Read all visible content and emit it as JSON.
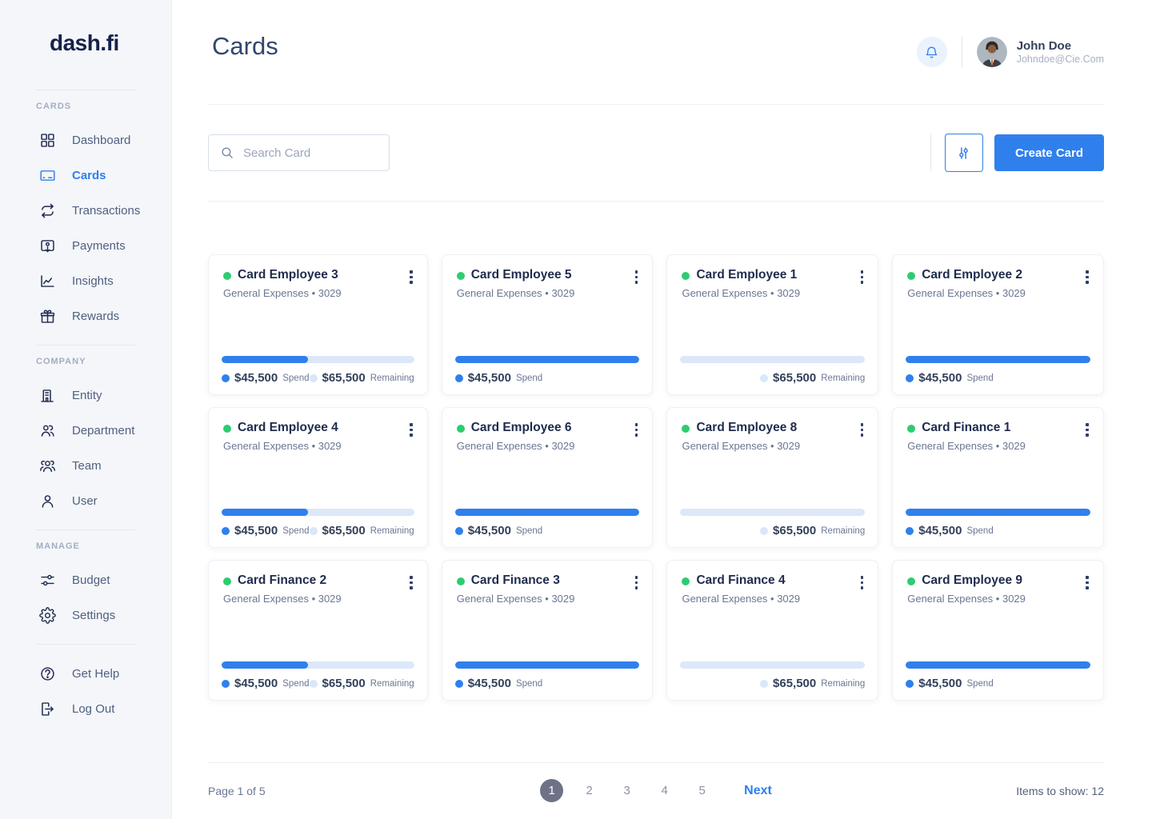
{
  "sidebar": {
    "logo": "dash.fi",
    "sections": [
      {
        "label": "CARDS",
        "items": [
          {
            "icon": "dashboard-icon",
            "label": "Dashboard",
            "active": false
          },
          {
            "icon": "card-icon",
            "label": "Cards",
            "active": true
          },
          {
            "icon": "transactions-icon",
            "label": "Transactions",
            "active": false
          },
          {
            "icon": "payments-icon",
            "label": "Payments",
            "active": false
          },
          {
            "icon": "insights-icon",
            "label": "Insights",
            "active": false
          },
          {
            "icon": "rewards-icon",
            "label": "Rewards",
            "active": false
          }
        ]
      },
      {
        "label": "COMPANY",
        "items": [
          {
            "icon": "entity-icon",
            "label": "Entity",
            "active": false
          },
          {
            "icon": "department-icon",
            "label": "Department",
            "active": false
          },
          {
            "icon": "team-icon",
            "label": "Team",
            "active": false
          },
          {
            "icon": "user-icon",
            "label": "User",
            "active": false
          }
        ]
      },
      {
        "label": "MANAGE",
        "items": [
          {
            "icon": "budget-icon",
            "label": "Budget",
            "active": false
          },
          {
            "icon": "settings-icon",
            "label": "Settings",
            "active": false
          }
        ]
      }
    ],
    "footer_items": [
      {
        "icon": "help-icon",
        "label": "Get Help"
      },
      {
        "icon": "logout-icon",
        "label": "Log Out"
      }
    ]
  },
  "header": {
    "title": "Cards",
    "user": {
      "name": "John Doe",
      "email": "Johndoe@Cie.Com"
    }
  },
  "toolbar": {
    "search_placeholder": "Search Card",
    "create_button": "Create Card"
  },
  "card_labels": {
    "spend": "Spend",
    "remaining": "Remaining"
  },
  "cards": [
    {
      "name": "Card Employee 3",
      "subtitle": "General Expenses • 3029",
      "progress": 45,
      "spend": "$45,500",
      "remaining": "$65,500"
    },
    {
      "name": "Card Employee 5",
      "subtitle": "General Expenses • 3029",
      "progress": 100,
      "spend": "$45,500",
      "remaining": null
    },
    {
      "name": "Card Employee 1",
      "subtitle": "General Expenses • 3029",
      "progress": 0,
      "spend": null,
      "remaining": "$65,500"
    },
    {
      "name": "Card Employee 2",
      "subtitle": "General Expenses • 3029",
      "progress": 100,
      "spend": "$45,500",
      "remaining": null
    },
    {
      "name": "Card Employee 4",
      "subtitle": "General Expenses • 3029",
      "progress": 45,
      "spend": "$45,500",
      "remaining": "$65,500"
    },
    {
      "name": "Card Employee 6",
      "subtitle": "General Expenses • 3029",
      "progress": 100,
      "spend": "$45,500",
      "remaining": null
    },
    {
      "name": "Card Employee 8",
      "subtitle": "General Expenses • 3029",
      "progress": 0,
      "spend": null,
      "remaining": "$65,500"
    },
    {
      "name": "Card Finance 1",
      "subtitle": "General Expenses • 3029",
      "progress": 100,
      "spend": "$45,500",
      "remaining": null
    },
    {
      "name": "Card Finance 2",
      "subtitle": "General Expenses • 3029",
      "progress": 45,
      "spend": "$45,500",
      "remaining": "$65,500"
    },
    {
      "name": "Card Finance 3",
      "subtitle": "General Expenses • 3029",
      "progress": 100,
      "spend": "$45,500",
      "remaining": null
    },
    {
      "name": "Card Finance 4",
      "subtitle": "General Expenses • 3029",
      "progress": 0,
      "spend": null,
      "remaining": "$65,500"
    },
    {
      "name": "Card Employee 9",
      "subtitle": "General Expenses • 3029",
      "progress": 100,
      "spend": "$45,500",
      "remaining": null
    }
  ],
  "pagination": {
    "page_info": "Page 1 of 5",
    "pages": [
      "1",
      "2",
      "3",
      "4",
      "5"
    ],
    "active_page": "1",
    "next_label": "Next",
    "items_to_show": "Items to show: 12"
  },
  "colors": {
    "accent_blue": "#2F80ED",
    "status_green": "#2ECC71",
    "progress_track": "#DCE8F9",
    "sidebar_bg": "#F4F6FA"
  }
}
